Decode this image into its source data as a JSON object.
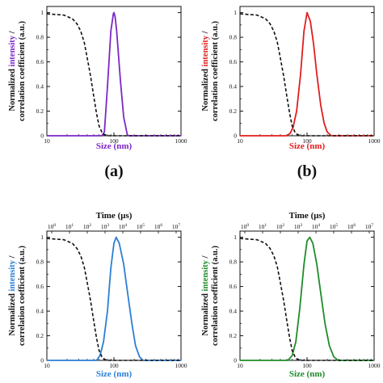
{
  "chart_data": [
    {
      "id": "a",
      "type": "line",
      "panel_label": "(a)",
      "xscale": "log",
      "xlim": [
        10,
        1000
      ],
      "ylim": [
        0,
        1.05
      ],
      "xlabel": "Size (nm)",
      "xlabel_color": "#7b28c4",
      "ylabel_parts": [
        "Normalized ",
        "intensity",
        " /",
        "correlation coefficient (a.u.)"
      ],
      "ylabel_highlight_color": "#7b28c4",
      "xticks": [
        "10",
        "100",
        "1000"
      ],
      "yticks": [
        "0",
        "0.2",
        "0.4",
        "0.6",
        "0.8",
        "1"
      ],
      "top_axis": null,
      "series": [
        {
          "role": "intensity",
          "color": "#7b28c4",
          "style": "solid",
          "x": [
            10,
            66,
            72,
            80,
            90,
            98,
            100,
            104,
            110,
            125,
            140,
            158,
            165,
            1000
          ],
          "y": [
            0,
            0,
            0.03,
            0.4,
            0.85,
            0.99,
            1.0,
            0.97,
            0.85,
            0.45,
            0.15,
            0.01,
            0,
            0
          ]
        },
        {
          "role": "correlation",
          "color": "#111111",
          "style": "dashed",
          "x": [
            10,
            18,
            24,
            28,
            32,
            36,
            40,
            45,
            50,
            55,
            60,
            66,
            72,
            80,
            100,
            1000
          ],
          "y": [
            0.99,
            0.98,
            0.95,
            0.91,
            0.85,
            0.76,
            0.63,
            0.48,
            0.32,
            0.18,
            0.08,
            0.03,
            0.01,
            0,
            0,
            0
          ]
        }
      ]
    },
    {
      "id": "b",
      "type": "line",
      "panel_label": "(b)",
      "xscale": "log",
      "xlim": [
        10,
        1000
      ],
      "ylim": [
        0,
        1.05
      ],
      "xlabel": "Size (nm)",
      "xlabel_color": "#e01e1e",
      "ylabel_parts": [
        "Normalized ",
        "intensity",
        " /",
        "correlation coefficient (a.u.)"
      ],
      "ylabel_highlight_color": "#e01e1e",
      "xticks": [
        "10",
        "100",
        "1000"
      ],
      "yticks": [
        "0",
        "0.2",
        "0.4",
        "0.6",
        "0.8",
        "1"
      ],
      "top_axis": null,
      "series": [
        {
          "role": "intensity",
          "color": "#e01e1e",
          "style": "solid",
          "x": [
            10,
            50,
            56,
            62,
            70,
            80,
            90,
            100,
            112,
            125,
            140,
            160,
            180,
            200,
            230,
            1000
          ],
          "y": [
            0,
            0,
            0.02,
            0.07,
            0.2,
            0.5,
            0.85,
            1.0,
            0.93,
            0.75,
            0.5,
            0.25,
            0.1,
            0.03,
            0,
            0
          ]
        },
        {
          "role": "correlation",
          "color": "#111111",
          "style": "dashed",
          "x": [
            10,
            18,
            24,
            28,
            32,
            36,
            40,
            45,
            50,
            55,
            60,
            66,
            72,
            80,
            100,
            1000
          ],
          "y": [
            0.99,
            0.98,
            0.95,
            0.91,
            0.85,
            0.76,
            0.63,
            0.48,
            0.32,
            0.18,
            0.08,
            0.03,
            0.01,
            0,
            0,
            0
          ]
        }
      ]
    },
    {
      "id": "c",
      "type": "line",
      "panel_label": "",
      "xscale": "log",
      "xlim": [
        10,
        1000
      ],
      "ylim": [
        0,
        1.05
      ],
      "xlabel": "Size (nm)",
      "xlabel_color": "#2b7fd4",
      "ylabel_parts": [
        "Normalized ",
        "intensity",
        " /",
        "correlation coefficient (a.u.)"
      ],
      "ylabel_highlight_color": "#2b7fd4",
      "xticks": [
        "10",
        "100",
        "1000"
      ],
      "yticks": [
        "0",
        "0.2",
        "0.4",
        "0.6",
        "0.8",
        "1"
      ],
      "top_axis": {
        "title": "Time (μs)",
        "exponents": [
          "0",
          "1",
          "2",
          "3",
          "4",
          "5",
          "6",
          "7"
        ]
      },
      "series": [
        {
          "role": "intensity",
          "color": "#2b7fd4",
          "style": "solid",
          "x": [
            10,
            55,
            62,
            70,
            80,
            90,
            100,
            108,
            120,
            140,
            160,
            185,
            210,
            240,
            270,
            1000
          ],
          "y": [
            0,
            0,
            0.04,
            0.15,
            0.4,
            0.75,
            0.95,
            1.0,
            0.95,
            0.78,
            0.55,
            0.3,
            0.12,
            0.03,
            0,
            0
          ]
        },
        {
          "role": "correlation",
          "color": "#111111",
          "style": "dashed",
          "x": [
            10,
            18,
            24,
            28,
            32,
            36,
            40,
            45,
            50,
            55,
            60,
            66,
            72,
            80,
            100,
            1000
          ],
          "y": [
            0.99,
            0.98,
            0.95,
            0.91,
            0.85,
            0.76,
            0.63,
            0.48,
            0.32,
            0.18,
            0.08,
            0.03,
            0.01,
            0,
            0,
            0
          ]
        }
      ]
    },
    {
      "id": "d",
      "type": "line",
      "panel_label": "",
      "xscale": "log",
      "xlim": [
        10,
        1000
      ],
      "ylim": [
        0,
        1.05
      ],
      "xlabel": "Size (nm)",
      "xlabel_color": "#1f8c2a",
      "ylabel_parts": [
        "Normalized ",
        "intensity",
        " /",
        "correlation coefficient (a.u.)"
      ],
      "ylabel_highlight_color": "#1f8c2a",
      "xticks": [
        "10",
        "100",
        "1000"
      ],
      "yticks": [
        "0",
        "0.2",
        "0.4",
        "0.6",
        "0.8",
        "1"
      ],
      "top_axis": {
        "title": "Time (μs)",
        "exponents": [
          "0",
          "1",
          "2",
          "3",
          "4",
          "5",
          "6",
          "7"
        ]
      },
      "series": [
        {
          "role": "intensity",
          "color": "#1f8c2a",
          "style": "solid",
          "x": [
            10,
            52,
            60,
            68,
            78,
            90,
            100,
            110,
            122,
            140,
            160,
            185,
            215,
            250,
            290,
            1000
          ],
          "y": [
            0,
            0,
            0.04,
            0.15,
            0.42,
            0.78,
            0.97,
            1.0,
            0.95,
            0.78,
            0.55,
            0.3,
            0.12,
            0.03,
            0,
            0
          ]
        },
        {
          "role": "correlation",
          "color": "#111111",
          "style": "dashed",
          "x": [
            10,
            18,
            24,
            28,
            32,
            36,
            40,
            45,
            50,
            55,
            60,
            66,
            72,
            80,
            100,
            1000
          ],
          "y": [
            0.99,
            0.98,
            0.95,
            0.91,
            0.85,
            0.76,
            0.63,
            0.48,
            0.32,
            0.18,
            0.08,
            0.03,
            0.01,
            0,
            0,
            0
          ]
        }
      ]
    }
  ]
}
